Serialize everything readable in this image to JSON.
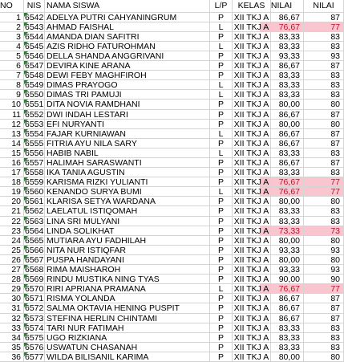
{
  "headers": {
    "no": "NO",
    "nis": "NIS",
    "name": "NAMA SISWA",
    "lp": "L/P",
    "kelas": "KELAS",
    "nilai1": "NILAI",
    "nilai2": "NILAI"
  },
  "colors": {
    "highlight_bg": "#f9c6cf",
    "highlight_text": "#c0102a",
    "comment_marker": "#2e7d32"
  },
  "rows": [
    {
      "no": "1",
      "nis": "6542",
      "name": "ADELYA PUTRI CAHYANINGRUM",
      "lp": "P",
      "kelas": "XII TKJ A",
      "nilai1": "86,67",
      "nilai2": "87",
      "hl": false
    },
    {
      "no": "2",
      "nis": "6543",
      "name": "AHMAD FAISHAL",
      "lp": "L",
      "kelas": "XII TKJ A",
      "nilai1": "76,67",
      "nilai2": "77",
      "hl": true
    },
    {
      "no": "3",
      "nis": "6544",
      "name": "AMANDA DIAN SAFITRI",
      "lp": "P",
      "kelas": "XII TKJ A",
      "nilai1": "83,33",
      "nilai2": "83",
      "hl": false
    },
    {
      "no": "4",
      "nis": "6545",
      "name": "AZIS RIDHO FATUROHMAN",
      "lp": "L",
      "kelas": "XII TKJ A",
      "nilai1": "83,33",
      "nilai2": "83",
      "hl": false
    },
    {
      "no": "5",
      "nis": "6546",
      "name": "DELLA SHANDA ANGGRIVANI",
      "lp": "P",
      "kelas": "XII TKJ A",
      "nilai1": "93,33",
      "nilai2": "93",
      "hl": false
    },
    {
      "no": "6",
      "nis": "6547",
      "name": "DEVIRA KINE ARANA",
      "lp": "P",
      "kelas": "XII TKJ A",
      "nilai1": "86,67",
      "nilai2": "87",
      "hl": false
    },
    {
      "no": "7",
      "nis": "6548",
      "name": "DEWI FEBY MAGHFIROH",
      "lp": "P",
      "kelas": "XII TKJ A",
      "nilai1": "83,33",
      "nilai2": "83",
      "hl": false
    },
    {
      "no": "8",
      "nis": "6549",
      "name": "DIMAS PRAYOGO",
      "lp": "L",
      "kelas": "XII TKJ A",
      "nilai1": "83,33",
      "nilai2": "83",
      "hl": false
    },
    {
      "no": "9",
      "nis": "6550",
      "name": "DIMAS TRI PAMUJI",
      "lp": "L",
      "kelas": "XII TKJ A",
      "nilai1": "83,33",
      "nilai2": "83",
      "hl": false
    },
    {
      "no": "10",
      "nis": "6551",
      "name": "DITA NOVIA RAMDHANI",
      "lp": "P",
      "kelas": "XII TKJ A",
      "nilai1": "80,00",
      "nilai2": "80",
      "hl": false
    },
    {
      "no": "11",
      "nis": "6552",
      "name": "DWI INDAH LESTARI",
      "lp": "P",
      "kelas": "XII TKJ A",
      "nilai1": "86,67",
      "nilai2": "87",
      "hl": false
    },
    {
      "no": "12",
      "nis": "6553",
      "name": "EFI NURYANTI",
      "lp": "P",
      "kelas": "XII TKJ A",
      "nilai1": "80,00",
      "nilai2": "80",
      "hl": false
    },
    {
      "no": "13",
      "nis": "6554",
      "name": "FAJAR KURNIAWAN",
      "lp": "L",
      "kelas": "XII TKJ A",
      "nilai1": "86,67",
      "nilai2": "87",
      "hl": false
    },
    {
      "no": "14",
      "nis": "6555",
      "name": "FITRIA AYU NILA SARY",
      "lp": "P",
      "kelas": "XII TKJ A",
      "nilai1": "86,67",
      "nilai2": "87",
      "hl": false
    },
    {
      "no": "15",
      "nis": "6556",
      "name": "HABIB NABIL",
      "lp": "L",
      "kelas": "XII TKJ A",
      "nilai1": "83,33",
      "nilai2": "83",
      "hl": false
    },
    {
      "no": "16",
      "nis": "6557",
      "name": "HALIMAH SARASWANTI",
      "lp": "P",
      "kelas": "XII TKJ A",
      "nilai1": "86,67",
      "nilai2": "87",
      "hl": false
    },
    {
      "no": "17",
      "nis": "6558",
      "name": "IKA TANIA AGUSTIN",
      "lp": "P",
      "kelas": "XII TKJ A",
      "nilai1": "83,33",
      "nilai2": "83",
      "hl": false
    },
    {
      "no": "18",
      "nis": "6559",
      "name": "KARISMA RIZKI YULIANTI",
      "lp": "P",
      "kelas": "XII TKJ A",
      "nilai1": "76,67",
      "nilai2": "77",
      "hl": true
    },
    {
      "no": "19",
      "nis": "6560",
      "name": "KENANDO SURYA BUMI",
      "lp": "L",
      "kelas": "XII TKJ A",
      "nilai1": "76,67",
      "nilai2": "77",
      "hl": true
    },
    {
      "no": "20",
      "nis": "6561",
      "name": "KLARISA SETYA WARDANA",
      "lp": "P",
      "kelas": "XII TKJ A",
      "nilai1": "80,00",
      "nilai2": "80",
      "hl": false
    },
    {
      "no": "21",
      "nis": "6562",
      "name": "LAELATUL ISTIQOMAH",
      "lp": "P",
      "kelas": "XII TKJ A",
      "nilai1": "83,33",
      "nilai2": "83",
      "hl": false
    },
    {
      "no": "22",
      "nis": "6563",
      "name": "LINA SRI MULYANI",
      "lp": "P",
      "kelas": "XII TKJ A",
      "nilai1": "83,33",
      "nilai2": "83",
      "hl": false
    },
    {
      "no": "23",
      "nis": "6564",
      "name": "LINDA SOLIKHAT",
      "lp": "P",
      "kelas": "XII TKJ A",
      "nilai1": "73,33",
      "nilai2": "73",
      "hl": true
    },
    {
      "no": "24",
      "nis": "6565",
      "name": "MUTIARA AYU FADHILAH",
      "lp": "P",
      "kelas": "XII TKJ A",
      "nilai1": "80,00",
      "nilai2": "80",
      "hl": false
    },
    {
      "no": "25",
      "nis": "6566",
      "name": "NITA NUR ISTIQFAR",
      "lp": "P",
      "kelas": "XII TKJ A",
      "nilai1": "93,33",
      "nilai2": "93",
      "hl": false
    },
    {
      "no": "26",
      "nis": "6567",
      "name": "PUSPA HANDAYANI",
      "lp": "P",
      "kelas": "XII TKJ A",
      "nilai1": "80,00",
      "nilai2": "80",
      "hl": false
    },
    {
      "no": "27",
      "nis": "6568",
      "name": "RIMA MAISHAROH",
      "lp": "P",
      "kelas": "XII TKJ A",
      "nilai1": "93,33",
      "nilai2": "93",
      "hl": false
    },
    {
      "no": "28",
      "nis": "6569",
      "name": "RINDU MUSTIKA NING TYAS",
      "lp": "P",
      "kelas": "XII TKJ A",
      "nilai1": "90,00",
      "nilai2": "90",
      "hl": false
    },
    {
      "no": "29",
      "nis": "6570",
      "name": "RIRI APRIANA PRAMANA",
      "lp": "L",
      "kelas": "XII TKJ A",
      "nilai1": "76,67",
      "nilai2": "77",
      "hl": true
    },
    {
      "no": "30",
      "nis": "6571",
      "name": "RISMA YOLANDA",
      "lp": "P",
      "kelas": "XII TKJ A",
      "nilai1": "86,67",
      "nilai2": "87",
      "hl": false
    },
    {
      "no": "31",
      "nis": "6572",
      "name": "SALMA OKTAVIA HENING PUSPIT",
      "lp": "P",
      "kelas": "XII TKJ A",
      "nilai1": "86,67",
      "nilai2": "87",
      "hl": false
    },
    {
      "no": "32",
      "nis": "6573",
      "name": "STEFINA HERLIN CHINTAMI",
      "lp": "P",
      "kelas": "XII TKJ A",
      "nilai1": "86,67",
      "nilai2": "87",
      "hl": false
    },
    {
      "no": "33",
      "nis": "6574",
      "name": "TARI NUR FATIMAH",
      "lp": "P",
      "kelas": "XII TKJ A",
      "nilai1": "83,33",
      "nilai2": "83",
      "hl": false
    },
    {
      "no": "34",
      "nis": "6575",
      "name": "UGO RIZKIANA",
      "lp": "P",
      "kelas": "XII TKJ A",
      "nilai1": "83,33",
      "nilai2": "83",
      "hl": false
    },
    {
      "no": "35",
      "nis": "6576",
      "name": "USWATUN CHASANAH",
      "lp": "P",
      "kelas": "XII TKJ A",
      "nilai1": "83,33",
      "nilai2": "83",
      "hl": false
    },
    {
      "no": "36",
      "nis": "6577",
      "name": "WILDA BILISANIL KARIMA",
      "lp": "P",
      "kelas": "XII TKJ A",
      "nilai1": "80,00",
      "nilai2": "80",
      "hl": false
    }
  ]
}
